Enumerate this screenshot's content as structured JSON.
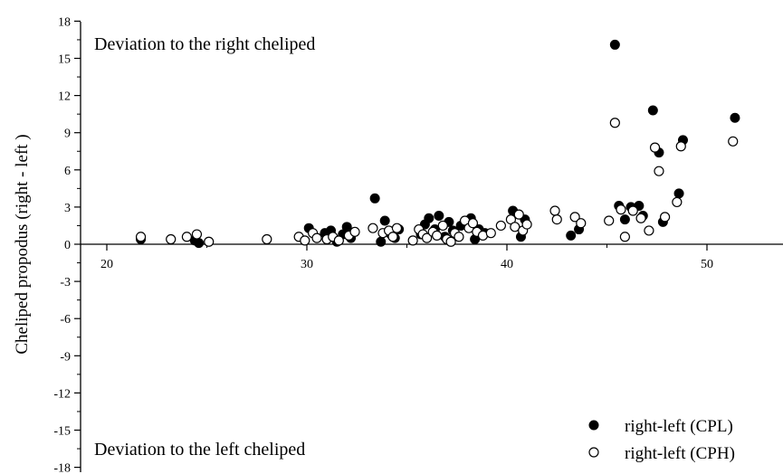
{
  "chart_data": {
    "type": "scatter",
    "ylabel": "Cheliped propodus (right - left )",
    "xlabel": "",
    "xlim": [
      17.9,
      53.5
    ],
    "ylim": [
      -18,
      18
    ],
    "x_ticks": [
      20,
      30,
      40,
      50
    ],
    "y_ticks": [
      -18,
      -15,
      -12,
      -9,
      -6,
      -3,
      0,
      3,
      6,
      9,
      12,
      15,
      18
    ],
    "grid": false,
    "legend_position": "bottom-right",
    "annotations": [
      {
        "text": "Deviation to the right cheliped",
        "position": "top-left"
      },
      {
        "text": "Deviation to the left cheliped",
        "position": "bottom-left"
      }
    ],
    "series": [
      {
        "name": "right-left (CPL)",
        "marker": "filled-circle",
        "color": "#000000",
        "points": [
          [
            21.7,
            0.4
          ],
          [
            24.4,
            0.3
          ],
          [
            24.6,
            0.1
          ],
          [
            30.1,
            1.3
          ],
          [
            30.9,
            0.9
          ],
          [
            31.2,
            1.1
          ],
          [
            31.5,
            0.2
          ],
          [
            31.8,
            0.8
          ],
          [
            32.0,
            1.4
          ],
          [
            32.2,
            0.5
          ],
          [
            33.4,
            3.7
          ],
          [
            33.7,
            0.2
          ],
          [
            33.9,
            1.9
          ],
          [
            34.2,
            0.8
          ],
          [
            34.4,
            0.5
          ],
          [
            34.6,
            1.2
          ],
          [
            35.7,
            0.8
          ],
          [
            35.9,
            1.6
          ],
          [
            36.1,
            2.1
          ],
          [
            36.4,
            1.2
          ],
          [
            36.6,
            2.3
          ],
          [
            36.9,
            0.6
          ],
          [
            37.1,
            1.8
          ],
          [
            37.3,
            1.1
          ],
          [
            37.7,
            1.5
          ],
          [
            38.2,
            2.1
          ],
          [
            38.4,
            0.4
          ],
          [
            38.6,
            1.2
          ],
          [
            38.9,
            0.9
          ],
          [
            40.3,
            2.7
          ],
          [
            40.7,
            0.6
          ],
          [
            40.9,
            2.0
          ],
          [
            43.2,
            0.7
          ],
          [
            43.6,
            1.2
          ],
          [
            45.4,
            16.1
          ],
          [
            45.6,
            3.1
          ],
          [
            45.9,
            2.0
          ],
          [
            46.2,
            3.0
          ],
          [
            46.6,
            3.1
          ],
          [
            46.8,
            2.3
          ],
          [
            47.3,
            10.8
          ],
          [
            47.6,
            7.4
          ],
          [
            47.8,
            1.8
          ],
          [
            48.6,
            4.1
          ],
          [
            48.8,
            8.4
          ],
          [
            51.4,
            10.2
          ]
        ]
      },
      {
        "name": "right-left (CPH)",
        "marker": "open-circle",
        "color": "#000000",
        "points": [
          [
            21.7,
            0.6
          ],
          [
            23.2,
            0.4
          ],
          [
            24.0,
            0.6
          ],
          [
            24.5,
            0.8
          ],
          [
            25.1,
            0.2
          ],
          [
            28.0,
            0.4
          ],
          [
            29.6,
            0.6
          ],
          [
            29.9,
            0.3
          ],
          [
            30.3,
            0.9
          ],
          [
            30.5,
            0.5
          ],
          [
            31.0,
            0.4
          ],
          [
            31.3,
            0.6
          ],
          [
            31.6,
            0.3
          ],
          [
            32.1,
            0.7
          ],
          [
            32.4,
            1.0
          ],
          [
            33.3,
            1.3
          ],
          [
            33.8,
            0.9
          ],
          [
            34.1,
            1.1
          ],
          [
            34.5,
            1.3
          ],
          [
            34.3,
            0.6
          ],
          [
            35.3,
            0.3
          ],
          [
            35.6,
            1.2
          ],
          [
            35.8,
            0.8
          ],
          [
            36.0,
            0.5
          ],
          [
            36.3,
            1.0
          ],
          [
            36.5,
            0.7
          ],
          [
            36.8,
            1.5
          ],
          [
            37.0,
            0.4
          ],
          [
            37.2,
            0.2
          ],
          [
            37.4,
            0.9
          ],
          [
            37.6,
            0.6
          ],
          [
            37.9,
            1.9
          ],
          [
            38.1,
            1.3
          ],
          [
            38.3,
            1.7
          ],
          [
            38.5,
            1.0
          ],
          [
            38.8,
            0.7
          ],
          [
            39.2,
            0.9
          ],
          [
            39.7,
            1.5
          ],
          [
            40.2,
            2.0
          ],
          [
            40.4,
            1.4
          ],
          [
            40.6,
            2.4
          ],
          [
            40.8,
            1.1
          ],
          [
            41.0,
            1.6
          ],
          [
            42.4,
            2.7
          ],
          [
            42.5,
            2.0
          ],
          [
            43.4,
            2.2
          ],
          [
            43.7,
            1.7
          ],
          [
            45.1,
            1.9
          ],
          [
            45.4,
            9.8
          ],
          [
            45.7,
            2.8
          ],
          [
            45.9,
            0.6
          ],
          [
            46.3,
            2.7
          ],
          [
            46.7,
            2.1
          ],
          [
            47.1,
            1.1
          ],
          [
            47.4,
            7.8
          ],
          [
            47.6,
            5.9
          ],
          [
            47.9,
            2.2
          ],
          [
            48.5,
            3.4
          ],
          [
            48.7,
            7.9
          ],
          [
            51.3,
            8.3
          ]
        ]
      }
    ]
  }
}
